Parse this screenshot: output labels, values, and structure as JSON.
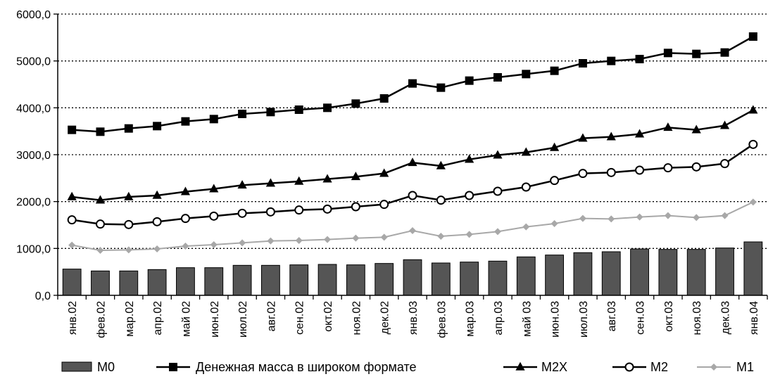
{
  "chart_data": {
    "type": "bar+line",
    "title": "",
    "xlabel": "",
    "ylabel": "",
    "ylim": [
      0,
      6000
    ],
    "y_ticks": [
      "0,0",
      "1000,0",
      "2000,0",
      "3000,0",
      "4000,0",
      "5000,0",
      "6000,0"
    ],
    "y_tick_values": [
      0,
      1000,
      2000,
      3000,
      4000,
      5000,
      6000
    ],
    "grid": "horizontal-dotted",
    "legend_position": "bottom",
    "categories": [
      "янв.02",
      "фев.02",
      "мар.02",
      "апр.02",
      "май 02",
      "июн.02",
      "июл.02",
      "авг.02",
      "сен.02",
      "окт.02",
      "ноя.02",
      "дек.02",
      "янв.03",
      "фев.03",
      "мар.03",
      "апр.03",
      "май 03",
      "июн.03",
      "июл.03",
      "авг.03",
      "сен.03",
      "окт.03",
      "ноя.03",
      "дек.03",
      "янв.04"
    ],
    "series": [
      {
        "name": "M0",
        "kind": "bar",
        "color": "#555555",
        "values": [
          560,
          520,
          520,
          550,
          590,
          590,
          640,
          640,
          650,
          660,
          650,
          680,
          760,
          690,
          710,
          730,
          820,
          860,
          910,
          930,
          990,
          980,
          980,
          1010,
          1140
        ]
      },
      {
        "name": "Денежная масса в широком формате",
        "kind": "line",
        "marker": "square",
        "color": "#000000",
        "values": [
          3530,
          3490,
          3560,
          3610,
          3710,
          3760,
          3870,
          3910,
          3960,
          4000,
          4090,
          4200,
          4520,
          4430,
          4580,
          4650,
          4720,
          4790,
          4950,
          5000,
          5040,
          5170,
          5150,
          5180,
          5520
        ]
      },
      {
        "name": "M2X",
        "kind": "line",
        "marker": "triangle",
        "color": "#000000",
        "values": [
          2100,
          2030,
          2100,
          2130,
          2210,
          2270,
          2350,
          2390,
          2430,
          2480,
          2530,
          2600,
          2830,
          2760,
          2900,
          2990,
          3050,
          3150,
          3350,
          3380,
          3440,
          3580,
          3530,
          3620,
          3950
        ]
      },
      {
        "name": "M2",
        "kind": "line",
        "marker": "circle",
        "color": "#000000",
        "values": [
          1610,
          1520,
          1510,
          1570,
          1640,
          1690,
          1750,
          1780,
          1820,
          1840,
          1890,
          1940,
          2130,
          2030,
          2130,
          2220,
          2310,
          2450,
          2600,
          2620,
          2670,
          2720,
          2740,
          2810,
          3220
        ]
      },
      {
        "name": "M1",
        "kind": "line",
        "marker": "diamond",
        "color": "#a8a8a8",
        "values": [
          1070,
          960,
          970,
          990,
          1050,
          1080,
          1120,
          1160,
          1170,
          1190,
          1220,
          1240,
          1380,
          1260,
          1300,
          1360,
          1460,
          1530,
          1640,
          1630,
          1670,
          1700,
          1660,
          1700,
          1990
        ]
      }
    ]
  }
}
